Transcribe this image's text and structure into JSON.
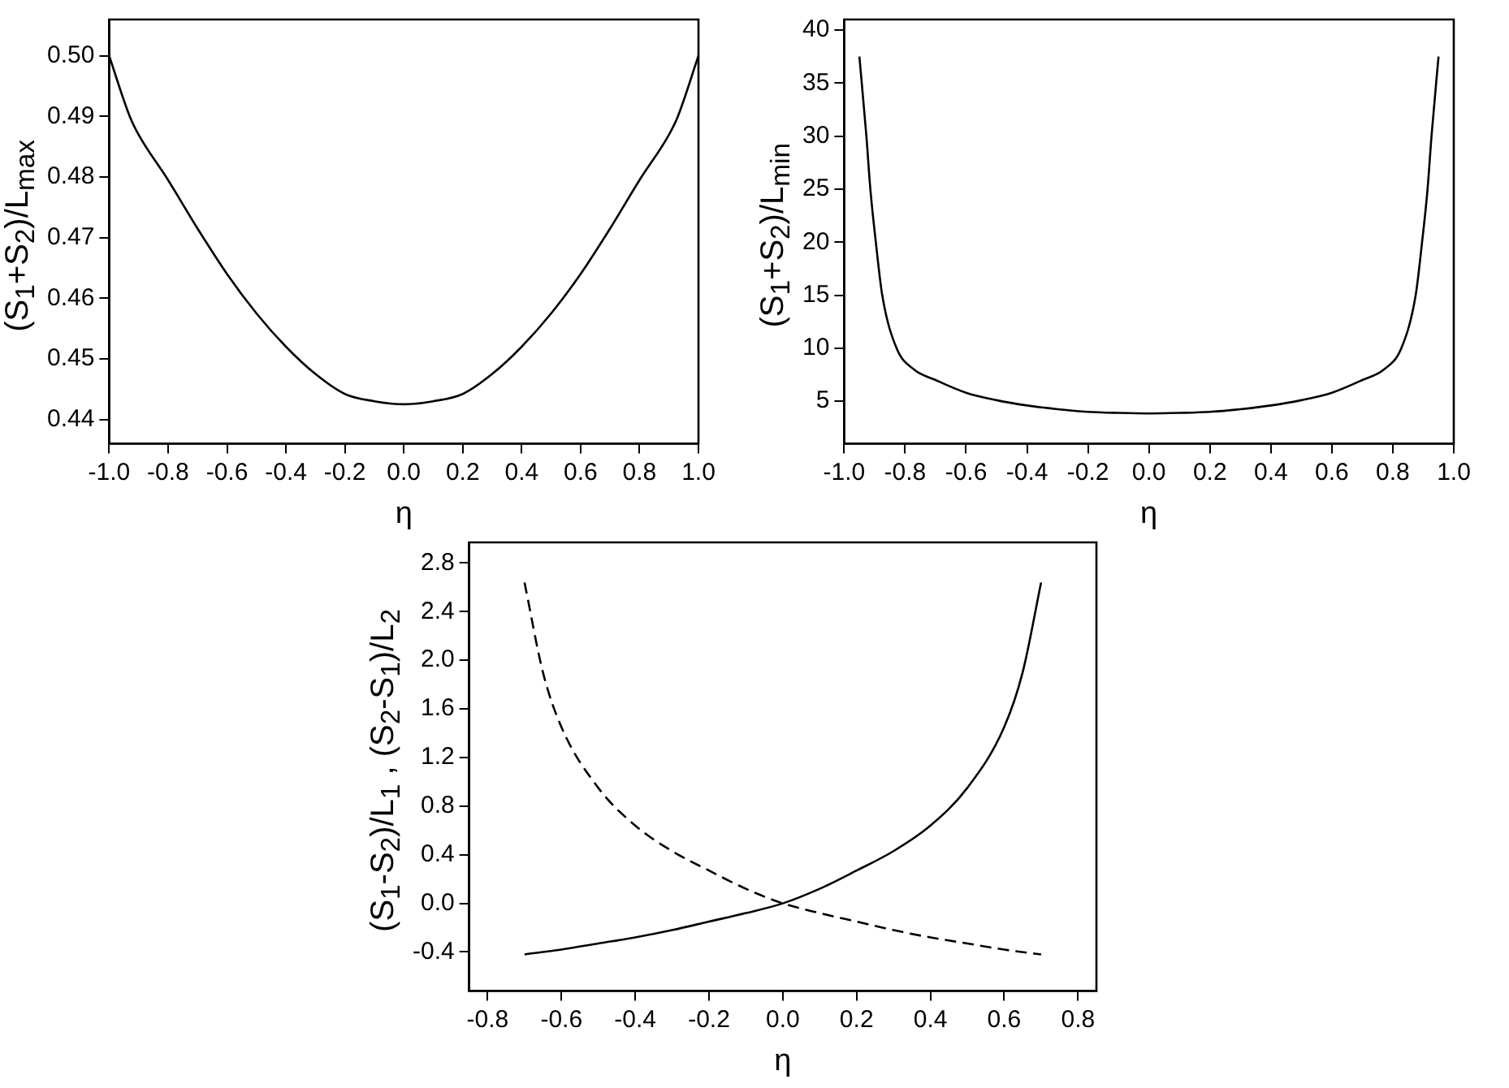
{
  "chart_data": [
    {
      "type": "line",
      "xlabel": "η",
      "ylabel": "(S$_{1}$+S$_{2}$)/L$_{max}$",
      "marker": "none",
      "line_style": "solid",
      "xlim": [
        -1,
        1
      ],
      "ylim": [
        0.436,
        0.506
      ],
      "xticks": [
        {
          "value": -1,
          "label": "-1.0"
        },
        {
          "value": -0.8,
          "label": "-0.8"
        },
        {
          "value": -0.6,
          "label": "-0.6"
        },
        {
          "value": -0.4,
          "label": "-0.4"
        },
        {
          "value": -0.2,
          "label": "-0.2"
        },
        {
          "value": 0,
          "label": "0.0"
        },
        {
          "value": 0.2,
          "label": "0.2"
        },
        {
          "value": 0.4,
          "label": "0.4"
        },
        {
          "value": 0.6,
          "label": "0.6"
        },
        {
          "value": 0.8,
          "label": "0.8"
        },
        {
          "value": 1,
          "label": "1.0"
        }
      ],
      "yticks": [
        {
          "value": 0.44,
          "label": "0.44"
        },
        {
          "value": 0.45,
          "label": "0.45"
        },
        {
          "value": 0.46,
          "label": "0.46"
        },
        {
          "value": 0.47,
          "label": "0.47"
        },
        {
          "value": 0.48,
          "label": "0.48"
        },
        {
          "value": 0.49,
          "label": "0.49"
        },
        {
          "value": 0.5,
          "label": "0.50"
        }
      ],
      "series": [
        {
          "color": "#000000",
          "x": [
            -1,
            -0.93,
            -0.9,
            -0.8,
            -0.7,
            -0.6,
            -0.5,
            -0.4,
            -0.3,
            -0.2,
            -0.1,
            0,
            0.1,
            0.2,
            0.3,
            0.4,
            0.5,
            0.6,
            0.7,
            0.8,
            0.9,
            0.93,
            1
          ],
          "values": [
            0.5,
            0.49,
            0.487,
            0.4795,
            0.4715,
            0.464,
            0.4575,
            0.452,
            0.4475,
            0.4442,
            0.443,
            0.4425,
            0.443,
            0.4442,
            0.4475,
            0.452,
            0.4575,
            0.464,
            0.4715,
            0.4795,
            0.487,
            0.49,
            0.5
          ]
        }
      ]
    },
    {
      "type": "line",
      "xlabel": "η",
      "ylabel": "(S$_{1}$+S$_{2}$)/L$_{min}$",
      "marker": "none",
      "line_style": "solid",
      "xlim": [
        -1,
        1
      ],
      "ylim": [
        1,
        41
      ],
      "xticks": [
        {
          "value": -1,
          "label": "-1.0"
        },
        {
          "value": -0.8,
          "label": "-0.8"
        },
        {
          "value": -0.6,
          "label": "-0.6"
        },
        {
          "value": -0.4,
          "label": "-0.4"
        },
        {
          "value": -0.2,
          "label": "-0.2"
        },
        {
          "value": 0,
          "label": "0.0"
        },
        {
          "value": 0.2,
          "label": "0.2"
        },
        {
          "value": 0.4,
          "label": "0.4"
        },
        {
          "value": 0.6,
          "label": "0.6"
        },
        {
          "value": 0.8,
          "label": "0.8"
        },
        {
          "value": 1,
          "label": "1.0"
        }
      ],
      "yticks": [
        5,
        10,
        15,
        20,
        25,
        30,
        35,
        40
      ],
      "series": [
        {
          "color": "#000000",
          "x": [
            -0.95,
            -0.927,
            -0.914,
            -0.896,
            -0.875,
            -0.828,
            -0.771,
            -0.7,
            -0.6,
            -0.5,
            -0.4,
            -0.3,
            -0.2,
            -0.1,
            0,
            0.1,
            0.2,
            0.3,
            0.4,
            0.5,
            0.6,
            0.7,
            0.771,
            0.828,
            0.875,
            0.896,
            0.914,
            0.927,
            0.95
          ],
          "values": [
            37.5,
            30,
            25,
            20,
            15,
            10,
            8,
            7,
            5.8,
            5.1,
            4.6,
            4.25,
            4.0,
            3.9,
            3.85,
            3.9,
            4.0,
            4.25,
            4.6,
            5.1,
            5.8,
            7,
            8,
            10,
            15,
            20,
            25,
            30,
            37.5
          ]
        }
      ]
    },
    {
      "type": "line",
      "xlabel": "η",
      "ylabel": "(S$_{1}$-S$_{2}$)/L$_{1}$ ,  (S$_{2}$-S$_{1}$)/L$_{2}$",
      "marker": "none",
      "xlim": [
        -0.85,
        0.85
      ],
      "ylim": [
        -0.72,
        2.97
      ],
      "xticks": [
        {
          "value": -0.8,
          "label": "-0.8"
        },
        {
          "value": -0.6,
          "label": "-0.6"
        },
        {
          "value": -0.4,
          "label": "-0.4"
        },
        {
          "value": -0.2,
          "label": "-0.2"
        },
        {
          "value": 0,
          "label": "0.0"
        },
        {
          "value": 0.2,
          "label": "0.2"
        },
        {
          "value": 0.4,
          "label": "0.4"
        },
        {
          "value": 0.6,
          "label": "0.6"
        },
        {
          "value": 0.8,
          "label": "0.8"
        }
      ],
      "yticks": [
        {
          "value": -0.4,
          "label": "-0.4"
        },
        {
          "value": 0,
          "label": "0.0"
        },
        {
          "value": 0.4,
          "label": "0.4"
        },
        {
          "value": 0.8,
          "label": "0.8"
        },
        {
          "value": 1.2,
          "label": "1.2"
        },
        {
          "value": 1.6,
          "label": "1.6"
        },
        {
          "value": 2,
          "label": "2.0"
        },
        {
          "value": 2.4,
          "label": "2.4"
        },
        {
          "value": 2.8,
          "label": "2.8"
        }
      ],
      "series": [
        {
          "color": "#000000",
          "line_style": "solid",
          "x": [
            -0.7,
            -0.6,
            -0.5,
            -0.4,
            -0.3,
            -0.2,
            -0.1,
            0,
            0.1,
            0.2,
            0.3,
            0.4,
            0.5,
            0.6,
            0.65,
            0.7
          ],
          "values": [
            -0.42,
            -0.38,
            -0.33,
            -0.28,
            -0.22,
            -0.15,
            -0.08,
            0,
            0.12,
            0.27,
            0.43,
            0.64,
            0.95,
            1.45,
            1.9,
            2.64
          ]
        },
        {
          "color": "#000000",
          "line_style": "dashed",
          "x": [
            -0.7,
            -0.65,
            -0.6,
            -0.5,
            -0.4,
            -0.3,
            -0.2,
            -0.1,
            0,
            0.1,
            0.2,
            0.3,
            0.4,
            0.5,
            0.6,
            0.7
          ],
          "values": [
            2.64,
            1.9,
            1.45,
            0.95,
            0.64,
            0.43,
            0.27,
            0.12,
            0,
            -0.08,
            -0.15,
            -0.22,
            -0.28,
            -0.33,
            -0.38,
            -0.42
          ]
        }
      ]
    }
  ]
}
